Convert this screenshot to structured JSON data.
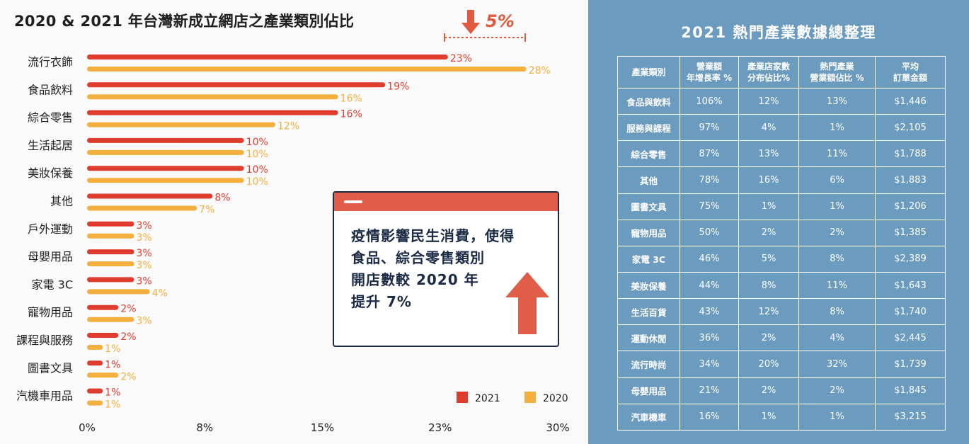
{
  "left_panel": {
    "title": "2020 & 2021 年台灣新成立網店之產業類別佔比",
    "drop_badge": "5%",
    "callout": {
      "text": "疫情影響民生消費，使得\n食品、綜合零售類別\n開店數較 2020 年\n提升 7%"
    }
  },
  "chart_data": {
    "type": "bar",
    "orientation": "horizontal",
    "categories": [
      "流行衣飾",
      "食品飲料",
      "綜合零售",
      "生活起居",
      "美妝保養",
      "其他",
      "戶外運動",
      "母嬰用品",
      "家電 3C",
      "寵物用品",
      "課程與服務",
      "圖書文具",
      "汽機車用品"
    ],
    "series": [
      {
        "name": "2021",
        "color": "#e03c2e",
        "values": [
          23,
          19,
          16,
          10,
          10,
          8,
          3,
          3,
          3,
          2,
          2,
          1,
          1
        ]
      },
      {
        "name": "2020",
        "color": "#f3b03e",
        "values": [
          28,
          16,
          12,
          10,
          10,
          7,
          3,
          3,
          4,
          3,
          1,
          2,
          1
        ]
      }
    ],
    "value_suffix": "%",
    "xlim": [
      0,
      30
    ],
    "xticks": [
      "0%",
      "8%",
      "15%",
      "23%",
      "30%"
    ],
    "legend_position": "bottom-right",
    "grid": false
  },
  "right_panel": {
    "title": "2021 熱門產業數據總整理",
    "table": {
      "headers": [
        "產業類別",
        "營業額\n年增長率 %",
        "產業店家數\n分布佔比%",
        "熱門產業\n營業額佔比 %",
        "平均\n訂單金額"
      ],
      "rows": [
        [
          "食品與飲料",
          "106%",
          "12%",
          "13%",
          "$1,446"
        ],
        [
          "服務與課程",
          "97%",
          "4%",
          "1%",
          "$2,105"
        ],
        [
          "綜合零售",
          "87%",
          "13%",
          "11%",
          "$1,788"
        ],
        [
          "其他",
          "78%",
          "16%",
          "6%",
          "$1,883"
        ],
        [
          "圖書文具",
          "75%",
          "1%",
          "1%",
          "$1,206"
        ],
        [
          "寵物用品",
          "50%",
          "2%",
          "2%",
          "$1,385"
        ],
        [
          "家電 3C",
          "46%",
          "5%",
          "8%",
          "$2,389"
        ],
        [
          "美妝保養",
          "44%",
          "8%",
          "11%",
          "$1,643"
        ],
        [
          "生活百貨",
          "43%",
          "12%",
          "8%",
          "$1,740"
        ],
        [
          "運動休閒",
          "36%",
          "2%",
          "4%",
          "$2,445"
        ],
        [
          "流行時尚",
          "34%",
          "20%",
          "32%",
          "$1,739"
        ],
        [
          "母嬰用品",
          "21%",
          "2%",
          "2%",
          "$1,845"
        ],
        [
          "汽車機車",
          "16%",
          "1%",
          "1%",
          "$3,215"
        ]
      ]
    }
  }
}
